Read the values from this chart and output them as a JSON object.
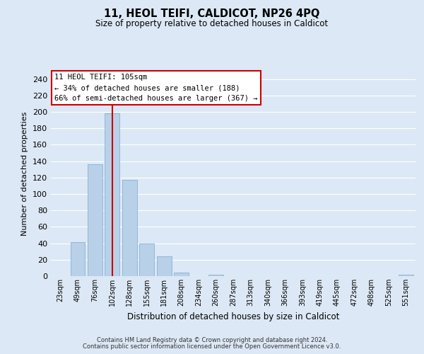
{
  "title": "11, HEOL TEIFI, CALDICOT, NP26 4PQ",
  "subtitle": "Size of property relative to detached houses in Caldicot",
  "xlabel": "Distribution of detached houses by size in Caldicot",
  "ylabel": "Number of detached properties",
  "categories": [
    "23sqm",
    "49sqm",
    "76sqm",
    "102sqm",
    "128sqm",
    "155sqm",
    "181sqm",
    "208sqm",
    "234sqm",
    "260sqm",
    "287sqm",
    "313sqm",
    "340sqm",
    "366sqm",
    "393sqm",
    "419sqm",
    "445sqm",
    "472sqm",
    "498sqm",
    "525sqm",
    "551sqm"
  ],
  "values": [
    0,
    41,
    136,
    198,
    117,
    40,
    24,
    4,
    0,
    2,
    0,
    0,
    0,
    0,
    0,
    0,
    0,
    0,
    0,
    0,
    2
  ],
  "bar_color": "#b8d0e8",
  "bar_edge_color": "#7aaad0",
  "vline_x": 3,
  "vline_color": "#cc0000",
  "annotation_text": "11 HEOL TEIFI: 105sqm\n← 34% of detached houses are smaller (188)\n66% of semi-detached houses are larger (367) →",
  "annotation_box_color": "#ffffff",
  "annotation_box_edge_color": "#cc0000",
  "ylim": [
    0,
    250
  ],
  "yticks": [
    0,
    20,
    40,
    60,
    80,
    100,
    120,
    140,
    160,
    180,
    200,
    220,
    240
  ],
  "background_color": "#dce8f5",
  "fig_background_color": "#dce8f5",
  "grid_color": "#ffffff",
  "footer_line1": "Contains HM Land Registry data © Crown copyright and database right 2024.",
  "footer_line2": "Contains public sector information licensed under the Open Government Licence v3.0."
}
